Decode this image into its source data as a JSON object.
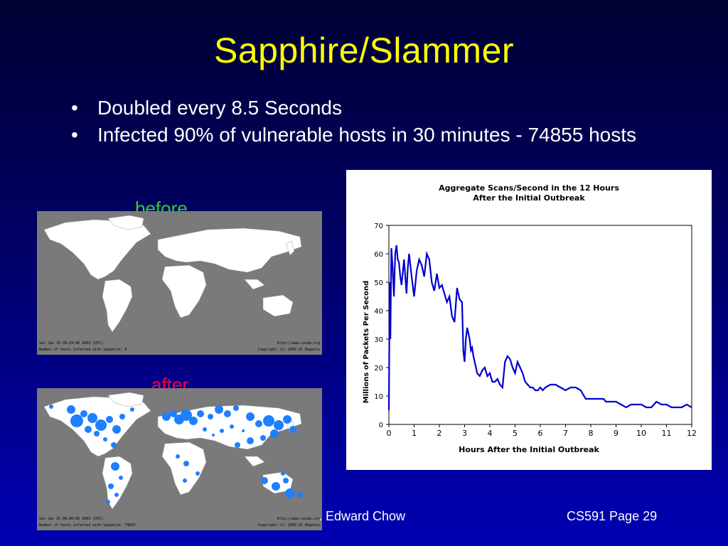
{
  "slide": {
    "title": "Sapphire/Slammer",
    "bullets": [
      {
        "marker": "•",
        "text": "Doubled every 8.5 Seconds"
      },
      {
        "marker": "•",
        "text": "Infected 90% of vulnerable hosts in 30 minutes - 74855 hosts"
      }
    ],
    "before_label": "before",
    "after_label": "after",
    "footer_author": ". Edward Chow",
    "footer_page": "CS591 Page 29"
  },
  "maps": {
    "before": {
      "timestamp": "Sat Jan 25 05:29:00 2003 (UTC)",
      "infected": "Number of hosts infected with Sapphire: 0",
      "url": "http://www.caida.org",
      "copyright": "Copyright (C) 2003 UC Regents"
    },
    "after": {
      "timestamp": "Sat Jan 25 06:00:00 2003 (UTC)",
      "infected": "Number of hosts infected with Sapphire: 74855",
      "url": "http://www.caida.org",
      "copyright": "Copyright (C) 2003 UC Regents"
    },
    "colors": {
      "ocean": "#7a7a7a",
      "land": "#ffffff",
      "infection": "#1e7fff"
    }
  },
  "chart_data": {
    "type": "line",
    "title": "Aggregate Scans/Second in the 12 Hours",
    "subtitle": "After the Initial Outbreak",
    "xlabel": "Hours After the Initial Outbreak",
    "ylabel": "Millions of Packets Per Second",
    "xlim": [
      0,
      12
    ],
    "ylim": [
      0,
      70
    ],
    "xticks": [
      0,
      1,
      2,
      3,
      4,
      5,
      6,
      7,
      8,
      9,
      10,
      11,
      12
    ],
    "yticks": [
      0,
      10,
      20,
      30,
      40,
      50,
      60,
      70
    ],
    "grid": false,
    "color": "#0000cc",
    "series": [
      {
        "x": [
          0,
          0.03,
          0.06,
          0.1,
          0.15,
          0.2,
          0.25,
          0.3,
          0.35,
          0.4,
          0.45,
          0.5,
          0.6,
          0.7,
          0.75,
          0.8,
          0.9,
          1.0,
          1.1,
          1.2,
          1.3,
          1.4,
          1.5,
          1.6,
          1.7,
          1.8,
          1.9,
          2.0,
          2.1,
          2.2,
          2.3,
          2.4,
          2.5,
          2.6,
          2.7,
          2.8,
          2.9,
          2.95,
          3.0,
          3.05,
          3.1,
          3.2,
          3.25,
          3.3,
          3.35,
          3.4,
          3.5,
          3.6,
          3.7,
          3.8,
          3.9,
          4.0,
          4.1,
          4.2,
          4.3,
          4.4,
          4.5,
          4.6,
          4.7,
          4.8,
          4.9,
          5.0,
          5.1,
          5.2,
          5.3,
          5.4,
          5.5,
          5.6,
          5.7,
          5.8,
          5.9,
          6.0,
          6.1,
          6.2,
          6.4,
          6.6,
          6.8,
          7.0,
          7.2,
          7.4,
          7.6,
          7.8,
          8.0,
          8.2,
          8.4,
          8.5,
          8.6,
          8.8,
          9.0,
          9.2,
          9.4,
          9.6,
          9.8,
          10.0,
          10.2,
          10.4,
          10.6,
          10.8,
          11.0,
          11.2,
          11.4,
          11.6,
          11.8,
          12.0
        ],
        "y": [
          5,
          50,
          30,
          62,
          55,
          45,
          60,
          63,
          58,
          57,
          52,
          49,
          58,
          46,
          55,
          60,
          52,
          45,
          54,
          58,
          56,
          52,
          60,
          58,
          50,
          47,
          53,
          48,
          49,
          46,
          43,
          45,
          38,
          36,
          48,
          44,
          43,
          26,
          22,
          30,
          34,
          30,
          26,
          27,
          24,
          22,
          18,
          17,
          19,
          20,
          17,
          18,
          15,
          15,
          16,
          14,
          13,
          22,
          24,
          23,
          20,
          18,
          22,
          20,
          18,
          15,
          14,
          13,
          13,
          12,
          12,
          13,
          12,
          13,
          14,
          14,
          13,
          12,
          13,
          13,
          12,
          9,
          9,
          9,
          9,
          9,
          8,
          8,
          8,
          7,
          6,
          7,
          7,
          7,
          6,
          6,
          8,
          7,
          7,
          6,
          6,
          6,
          7,
          6
        ]
      }
    ]
  }
}
